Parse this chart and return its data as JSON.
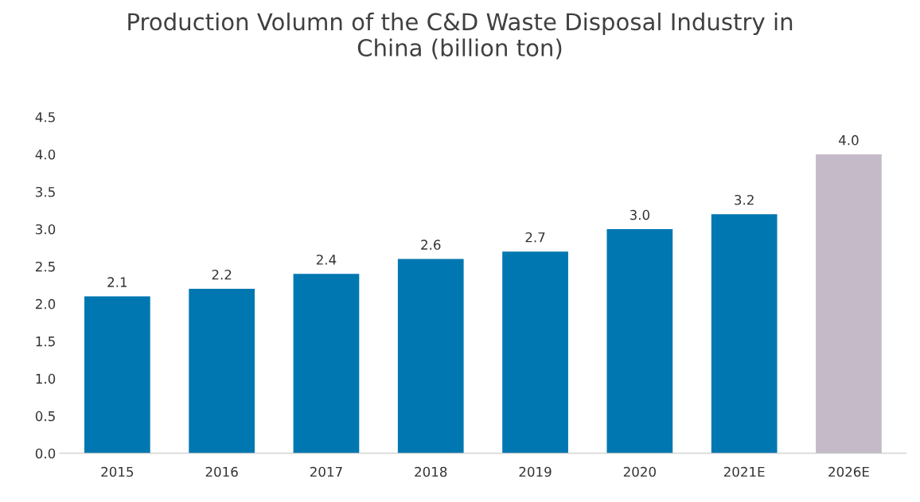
{
  "chart_data": {
    "type": "bar",
    "title": "Production Volumn of the C&D Waste Disposal Industry in\nChina (billion ton)",
    "categories": [
      "2015",
      "2016",
      "2017",
      "2018",
      "2019",
      "2020",
      "2021E",
      "2026E"
    ],
    "values": [
      2.1,
      2.2,
      2.4,
      2.6,
      2.7,
      3.0,
      3.2,
      4.0
    ],
    "colors": [
      "#0077b0",
      "#0077b0",
      "#0077b0",
      "#0077b0",
      "#0077b0",
      "#0077b0",
      "#0077b0",
      "#c5bac8"
    ],
    "value_labels": [
      "2.1",
      "2.2",
      "2.4",
      "2.6",
      "2.7",
      "3.0",
      "3.2",
      "4.0"
    ],
    "ylim": [
      0,
      4.5
    ],
    "yticks": [
      {
        "value": 0,
        "label": "0.0"
      },
      0.5,
      {
        "value": 1,
        "label": "1.0"
      },
      1.5,
      {
        "value": 2,
        "label": "2.0"
      },
      2.5,
      {
        "value": 3,
        "label": "3.0"
      },
      3.5,
      {
        "value": 4,
        "label": "4.0"
      },
      4.5
    ],
    "grid": false,
    "legend": false
  }
}
